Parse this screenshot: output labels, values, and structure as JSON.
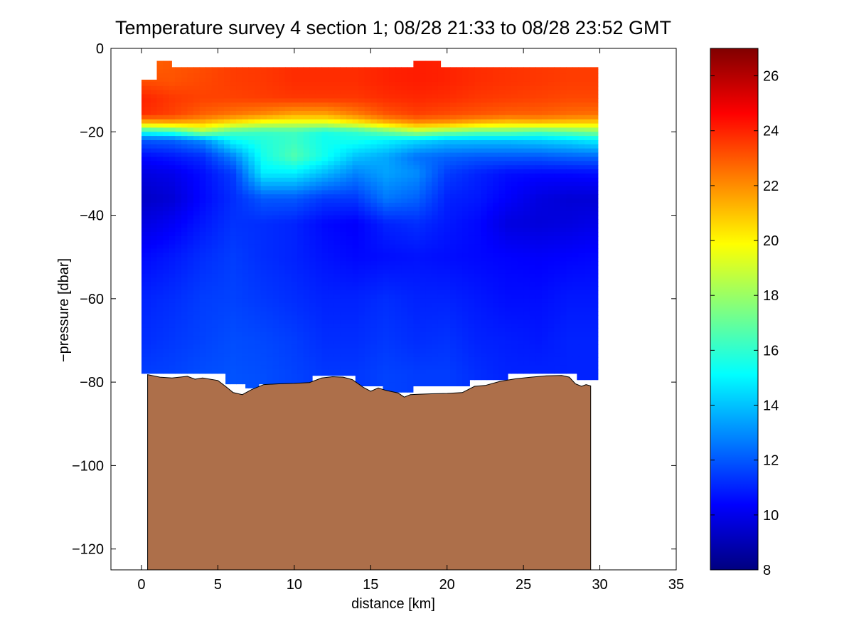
{
  "chart_data": {
    "type": "heatmap",
    "title": "Temperature survey 4 section 1; 08/28 21:33 to 08/28 23:52 GMT",
    "xlabel": "distance [km]",
    "ylabel": "−pressure [dbar]",
    "xlim": [
      -2,
      35
    ],
    "ylim": [
      -125,
      0
    ],
    "xticks": [
      0,
      5,
      10,
      15,
      20,
      25,
      30,
      35
    ],
    "yticks": [
      0,
      -20,
      -40,
      -60,
      -80,
      -100,
      -120
    ],
    "xtick_labels": [
      "0",
      "5",
      "10",
      "15",
      "20",
      "25",
      "30",
      "35"
    ],
    "ytick_labels": [
      "0",
      "−20",
      "−40",
      "−60",
      "−80",
      "−100",
      "−120"
    ],
    "grid": false,
    "colorbar": {
      "clim": [
        8,
        27
      ],
      "ticks": [
        8,
        10,
        12,
        14,
        16,
        18,
        20,
        22,
        24,
        26
      ],
      "tick_labels": [
        "8",
        "10",
        "12",
        "14",
        "16",
        "18",
        "20",
        "22",
        "24",
        "26"
      ],
      "colormap": "jet"
    },
    "temperature_field": {
      "x_km": [
        0,
        2,
        4,
        6,
        8,
        10,
        12,
        14,
        16,
        18,
        20,
        22,
        24,
        26,
        28,
        30
      ],
      "depth_dbar": [
        4,
        8,
        12,
        16,
        18,
        20,
        22,
        26,
        30,
        36,
        42,
        50,
        60,
        70,
        78
      ],
      "temperature_c": [
        [
          22.8,
          23.0,
          23.2,
          23.5,
          23.6,
          23.8,
          23.8,
          23.8,
          24.0,
          24.1,
          24.0,
          23.8,
          23.7,
          23.6,
          23.5,
          23.5
        ],
        [
          23.2,
          23.1,
          23.3,
          23.5,
          23.6,
          23.8,
          23.8,
          23.8,
          24.0,
          24.1,
          24.0,
          23.8,
          23.7,
          23.6,
          23.5,
          23.5
        ],
        [
          24.0,
          23.6,
          23.4,
          23.4,
          23.5,
          23.6,
          23.6,
          23.6,
          23.8,
          23.9,
          23.8,
          23.6,
          23.5,
          23.4,
          23.3,
          23.3
        ],
        [
          23.8,
          23.4,
          22.8,
          22.4,
          22.0,
          21.5,
          21.5,
          22.2,
          23.0,
          23.4,
          23.2,
          23.0,
          22.8,
          22.8,
          22.6,
          22.5
        ],
        [
          20.8,
          21.2,
          21.0,
          20.0,
          19.2,
          19.0,
          19.0,
          19.8,
          21.0,
          21.8,
          21.6,
          21.0,
          20.6,
          20.8,
          20.6,
          20.5
        ],
        [
          15.5,
          16.0,
          18.0,
          16.5,
          16.2,
          16.3,
          15.6,
          16.0,
          17.0,
          18.2,
          17.5,
          17.0,
          17.0,
          16.5,
          17.0,
          17.5
        ],
        [
          12.0,
          12.2,
          13.0,
          15.2,
          15.8,
          16.2,
          15.4,
          15.5,
          15.0,
          14.5,
          14.0,
          14.0,
          14.0,
          14.2,
          14.5,
          15.0
        ],
        [
          10.5,
          10.8,
          11.2,
          12.8,
          15.5,
          16.6,
          15.4,
          14.0,
          13.5,
          12.5,
          12.2,
          12.0,
          12.0,
          12.0,
          12.2,
          12.3
        ],
        [
          9.8,
          10.0,
          10.6,
          11.5,
          14.8,
          14.8,
          13.8,
          12.8,
          13.4,
          13.0,
          11.5,
          11.0,
          10.6,
          10.5,
          10.5,
          10.6
        ],
        [
          9.3,
          9.6,
          10.5,
          11.2,
          12.0,
          12.0,
          11.4,
          11.4,
          12.6,
          12.2,
          11.0,
          10.8,
          10.3,
          9.8,
          9.6,
          9.6
        ],
        [
          9.8,
          10.2,
          10.8,
          11.3,
          11.2,
          11.0,
          10.5,
          10.3,
          11.0,
          11.2,
          10.8,
          10.5,
          9.8,
          9.7,
          9.8,
          10.0
        ],
        [
          10.5,
          10.8,
          11.2,
          11.5,
          11.2,
          11.0,
          10.7,
          10.5,
          10.6,
          10.7,
          10.6,
          10.5,
          10.4,
          10.3,
          10.4,
          10.5
        ],
        [
          11.0,
          11.2,
          11.5,
          11.6,
          11.4,
          11.2,
          11.0,
          11.0,
          11.2,
          11.0,
          11.0,
          10.8,
          10.6,
          10.6,
          10.8,
          10.8
        ],
        [
          11.2,
          11.4,
          11.6,
          11.8,
          11.7,
          11.5,
          11.2,
          11.2,
          11.4,
          11.2,
          11.3,
          11.0,
          10.9,
          10.8,
          11.0,
          11.0
        ],
        [
          11.5,
          11.6,
          11.8,
          11.9,
          11.8,
          11.6,
          11.4,
          11.4,
          11.6,
          11.5,
          11.5,
          11.2,
          11.0,
          11.0,
          11.0,
          11.0
        ]
      ]
    },
    "data_coverage": {
      "x_km": [
        0,
        1,
        1,
        2,
        2,
        17.8,
        17.8,
        19.6,
        19.6,
        29.9,
        29.9,
        28.5,
        28.5,
        24,
        24,
        21.5,
        21.5,
        17.8,
        17.8,
        15.8,
        15.8,
        14,
        14,
        11.2,
        11.2,
        7.7,
        7.7,
        6.8,
        6.8,
        5.5,
        5.5,
        0
      ],
      "depth_dbar": [
        7.5,
        7.5,
        3,
        3,
        4.5,
        4.5,
        3,
        3,
        4.5,
        4.5,
        79.5,
        79.5,
        78,
        78,
        79.5,
        79.5,
        81,
        81,
        82.5,
        82.5,
        81,
        81,
        78.5,
        78.5,
        80.5,
        80.5,
        81.5,
        81.5,
        80.5,
        80.5,
        78,
        78
      ]
    },
    "seafloor": {
      "color": "#ad6f4a",
      "x_km": [
        0.4,
        1.2,
        2.0,
        3.0,
        3.5,
        4.0,
        5.0,
        5.5,
        6.0,
        6.6,
        7.2,
        8.0,
        9.0,
        10.0,
        11.0,
        11.8,
        12.5,
        13.2,
        13.8,
        14.5,
        15.0,
        15.5,
        16.0,
        16.8,
        17.2,
        17.6,
        18.2,
        19.0,
        20.0,
        21.0,
        21.8,
        22.5,
        23.5,
        24.5,
        25.5,
        26.5,
        27.5,
        28.0,
        28.4,
        28.8,
        29.1,
        29.4
      ],
      "depth_dbar": [
        78.2,
        78.8,
        79.0,
        78.6,
        79.3,
        79.0,
        79.6,
        81.0,
        82.5,
        83.0,
        81.8,
        80.6,
        80.4,
        80.3,
        80.1,
        79.0,
        78.7,
        78.8,
        79.4,
        81.2,
        82.2,
        81.4,
        82.0,
        82.6,
        83.6,
        83.0,
        82.9,
        82.8,
        82.7,
        82.5,
        81.0,
        80.8,
        79.8,
        79.2,
        78.8,
        78.5,
        78.4,
        78.8,
        80.4,
        81.0,
        80.6,
        80.9
      ]
    }
  }
}
